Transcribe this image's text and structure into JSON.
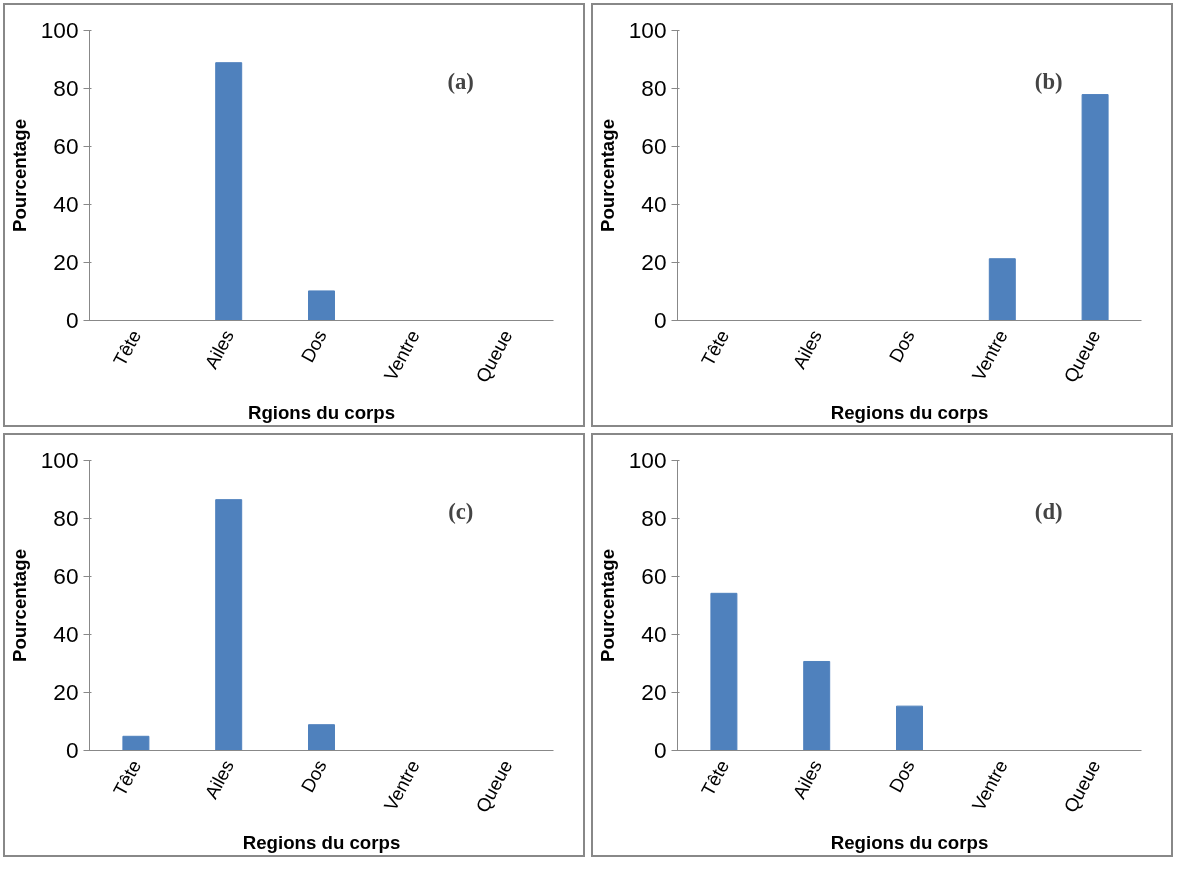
{
  "chart_data": [
    {
      "type": "bar",
      "categories": [
        "Tête",
        "Ailes",
        "Dos",
        "Ventre",
        "Queue"
      ],
      "values": [
        0,
        88.9,
        10.2,
        0,
        0
      ],
      "color": "#4f81bd",
      "ylim": [
        0,
        100
      ],
      "yticks": [
        0,
        20,
        40,
        60,
        80,
        100
      ],
      "xlabel": "Rgions du corps",
      "ylabel": "Pourcentage",
      "annotations": [
        "(a)"
      ],
      "grid": false
    },
    {
      "type": "bar",
      "categories": [
        "Tête",
        "Ailes",
        "Dos",
        "Ventre",
        "Queue"
      ],
      "values": [
        0,
        0,
        0,
        21.3,
        77.9
      ],
      "color": "#4f81bd",
      "ylim": [
        0,
        100
      ],
      "yticks": [
        0,
        20,
        40,
        60,
        80,
        100
      ],
      "xlabel": "Regions du corps",
      "ylabel": "Pourcentage",
      "annotations": [
        "(b)"
      ],
      "grid": false
    },
    {
      "type": "bar",
      "categories": [
        "Tête",
        "Ailes",
        "Dos",
        "Ventre",
        "Queue"
      ],
      "values": [
        4.9,
        86.5,
        8.9,
        0,
        0
      ],
      "color": "#4f81bd",
      "ylim": [
        0,
        100
      ],
      "yticks": [
        0,
        20,
        40,
        60,
        80,
        100
      ],
      "xlabel": "Regions du corps",
      "ylabel": "Pourcentage",
      "annotations": [
        "(c)"
      ],
      "grid": false
    },
    {
      "type": "bar",
      "categories": [
        "Tête",
        "Ailes",
        "Dos",
        "Ventre",
        "Queue"
      ],
      "values": [
        54.2,
        30.7,
        15.3,
        0,
        0
      ],
      "color": "#4f81bd",
      "ylim": [
        0,
        100
      ],
      "yticks": [
        0,
        20,
        40,
        60,
        80,
        100
      ],
      "xlabel": "Regions du corps",
      "ylabel": "Pourcentage",
      "annotations": [
        "(d)"
      ],
      "grid": false
    }
  ]
}
